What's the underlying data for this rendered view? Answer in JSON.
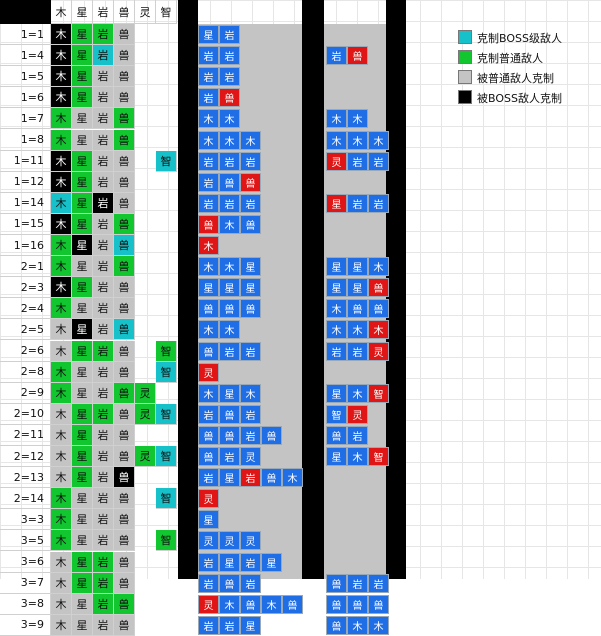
{
  "header": [
    "木",
    "星",
    "岩",
    "兽",
    "灵",
    "智"
  ],
  "colors": {
    "cyan": "#16c1c9",
    "green": "#11c62f",
    "gray": "#c4c4c4",
    "black": "#000000",
    "blue": "#1f6ee6",
    "red": "#e01616",
    "white": "#ffffff"
  },
  "legend": [
    {
      "label": "克制BOSS级敌人",
      "color": "cyan"
    },
    {
      "label": "克制普通敌人",
      "color": "green"
    },
    {
      "label": "被普通敌人克制",
      "color": "gray"
    },
    {
      "label": "被BOSS敌人克制",
      "color": "black"
    }
  ],
  "rows": [
    {
      "label": "1=1",
      "left": [
        [
          "木",
          "k"
        ],
        [
          "星",
          "g"
        ],
        [
          "岩",
          "g"
        ],
        [
          "兽",
          "y"
        ]
      ],
      "a": [
        [
          "星",
          "b"
        ],
        [
          "岩",
          "b"
        ]
      ],
      "b": []
    },
    {
      "label": "1=4",
      "left": [
        [
          "木",
          "k"
        ],
        [
          "星",
          "g"
        ],
        [
          "岩",
          "c"
        ],
        [
          "兽",
          "y"
        ]
      ],
      "a": [
        [
          "岩",
          "b"
        ],
        [
          "岩",
          "b"
        ]
      ],
      "b": [
        [
          "岩",
          "b"
        ],
        [
          "兽",
          "r"
        ]
      ]
    },
    {
      "label": "1=5",
      "left": [
        [
          "木",
          "k"
        ],
        [
          "星",
          "g"
        ],
        [
          "岩",
          "y"
        ],
        [
          "兽",
          "y"
        ]
      ],
      "a": [
        [
          "岩",
          "b"
        ],
        [
          "岩",
          "b"
        ]
      ],
      "b": []
    },
    {
      "label": "1=6",
      "left": [
        [
          "木",
          "k"
        ],
        [
          "星",
          "g"
        ],
        [
          "岩",
          "y"
        ],
        [
          "兽",
          "y"
        ]
      ],
      "a": [
        [
          "岩",
          "b"
        ],
        [
          "兽",
          "r"
        ]
      ],
      "b": []
    },
    {
      "label": "1=7",
      "left": [
        [
          "木",
          "g"
        ],
        [
          "星",
          "y"
        ],
        [
          "岩",
          "y"
        ],
        [
          "兽",
          "g"
        ]
      ],
      "a": [
        [
          "木",
          "b"
        ],
        [
          "木",
          "b"
        ]
      ],
      "b": [
        [
          "木",
          "b"
        ],
        [
          "木",
          "b"
        ]
      ]
    },
    {
      "label": "1=8",
      "left": [
        [
          "木",
          "g"
        ],
        [
          "星",
          "y"
        ],
        [
          "岩",
          "y"
        ],
        [
          "兽",
          "g"
        ]
      ],
      "a": [
        [
          "木",
          "b"
        ],
        [
          "木",
          "b"
        ],
        [
          "木",
          "b"
        ]
      ],
      "b": [
        [
          "木",
          "b"
        ],
        [
          "木",
          "b"
        ],
        [
          "木",
          "b"
        ]
      ]
    },
    {
      "label": "1=11",
      "left": [
        [
          "木",
          "k"
        ],
        [
          "星",
          "g"
        ],
        [
          "岩",
          "y"
        ],
        [
          "兽",
          "y"
        ],
        [
          "",
          ""
        ],
        [
          "智",
          "c"
        ]
      ],
      "a": [
        [
          "岩",
          "b"
        ],
        [
          "岩",
          "b"
        ],
        [
          "岩",
          "b"
        ]
      ],
      "b": [
        [
          "灵",
          "r"
        ],
        [
          "岩",
          "b"
        ],
        [
          "岩",
          "b"
        ]
      ]
    },
    {
      "label": "1=12",
      "left": [
        [
          "木",
          "k"
        ],
        [
          "星",
          "g"
        ],
        [
          "岩",
          "y"
        ],
        [
          "兽",
          "y"
        ]
      ],
      "a": [
        [
          "岩",
          "b"
        ],
        [
          "兽",
          "b"
        ],
        [
          "兽",
          "r"
        ]
      ],
      "b": []
    },
    {
      "label": "1=14",
      "left": [
        [
          "木",
          "c"
        ],
        [
          "星",
          "g"
        ],
        [
          "岩",
          "k"
        ],
        [
          "兽",
          "y"
        ]
      ],
      "a": [
        [
          "岩",
          "b"
        ],
        [
          "岩",
          "b"
        ],
        [
          "岩",
          "b"
        ]
      ],
      "b": [
        [
          "星",
          "r"
        ],
        [
          "岩",
          "b"
        ],
        [
          "岩",
          "b"
        ]
      ]
    },
    {
      "label": "1=15",
      "left": [
        [
          "木",
          "k"
        ],
        [
          "星",
          "g"
        ],
        [
          "岩",
          "y"
        ],
        [
          "兽",
          "g"
        ]
      ],
      "a": [
        [
          "兽",
          "r"
        ],
        [
          "木",
          "b"
        ],
        [
          "兽",
          "b"
        ]
      ],
      "b": []
    },
    {
      "label": "1=16",
      "left": [
        [
          "木",
          "g"
        ],
        [
          "星",
          "k"
        ],
        [
          "岩",
          "y"
        ],
        [
          "兽",
          "c"
        ]
      ],
      "a": [
        [
          "木",
          "r"
        ]
      ],
      "b": []
    },
    {
      "label": "2=1",
      "left": [
        [
          "木",
          "g"
        ],
        [
          "星",
          "y"
        ],
        [
          "岩",
          "y"
        ],
        [
          "兽",
          "g"
        ]
      ],
      "a": [
        [
          "木",
          "b"
        ],
        [
          "木",
          "b"
        ],
        [
          "星",
          "b"
        ]
      ],
      "b": [
        [
          "星",
          "b"
        ],
        [
          "星",
          "b"
        ],
        [
          "木",
          "b"
        ]
      ]
    },
    {
      "label": "2=3",
      "left": [
        [
          "木",
          "k"
        ],
        [
          "星",
          "g"
        ],
        [
          "岩",
          "y"
        ],
        [
          "兽",
          "y"
        ]
      ],
      "a": [
        [
          "星",
          "b"
        ],
        [
          "星",
          "b"
        ],
        [
          "星",
          "b"
        ]
      ],
      "b": [
        [
          "星",
          "b"
        ],
        [
          "星",
          "b"
        ],
        [
          "兽",
          "r"
        ]
      ]
    },
    {
      "label": "2=4",
      "left": [
        [
          "木",
          "g"
        ],
        [
          "星",
          "y"
        ],
        [
          "岩",
          "y"
        ],
        [
          "兽",
          "y"
        ]
      ],
      "a": [
        [
          "兽",
          "b"
        ],
        [
          "兽",
          "b"
        ],
        [
          "兽",
          "b"
        ]
      ],
      "b": [
        [
          "木",
          "b"
        ],
        [
          "兽",
          "b"
        ],
        [
          "兽",
          "b"
        ]
      ]
    },
    {
      "label": "2=5",
      "left": [
        [
          "木",
          "y"
        ],
        [
          "星",
          "k"
        ],
        [
          "岩",
          "y"
        ],
        [
          "兽",
          "c"
        ]
      ],
      "a": [
        [
          "木",
          "b"
        ],
        [
          "木",
          "b"
        ]
      ],
      "b": [
        [
          "木",
          "b"
        ],
        [
          "木",
          "b"
        ],
        [
          "木",
          "r"
        ]
      ]
    },
    {
      "label": "2=6",
      "left": [
        [
          "木",
          "y"
        ],
        [
          "星",
          "g"
        ],
        [
          "岩",
          "g"
        ],
        [
          "兽",
          "y"
        ],
        [
          "",
          ""
        ],
        [
          "智",
          "g"
        ]
      ],
      "a": [
        [
          "兽",
          "b"
        ],
        [
          "岩",
          "b"
        ],
        [
          "岩",
          "b"
        ]
      ],
      "b": [
        [
          "岩",
          "b"
        ],
        [
          "岩",
          "b"
        ],
        [
          "灵",
          "r"
        ]
      ]
    },
    {
      "label": "2=8",
      "left": [
        [
          "木",
          "g"
        ],
        [
          "星",
          "y"
        ],
        [
          "岩",
          "y"
        ],
        [
          "兽",
          "y"
        ],
        [
          "",
          ""
        ],
        [
          "智",
          "c"
        ]
      ],
      "a": [
        [
          "灵",
          "r"
        ]
      ],
      "b": []
    },
    {
      "label": "2=9",
      "left": [
        [
          "木",
          "g"
        ],
        [
          "星",
          "y"
        ],
        [
          "岩",
          "y"
        ],
        [
          "兽",
          "g"
        ],
        [
          "灵",
          "g"
        ]
      ],
      "a": [
        [
          "木",
          "b"
        ],
        [
          "星",
          "b"
        ],
        [
          "木",
          "b"
        ]
      ],
      "b": [
        [
          "星",
          "b"
        ],
        [
          "木",
          "b"
        ],
        [
          "智",
          "r"
        ]
      ]
    },
    {
      "label": "2=10",
      "left": [
        [
          "木",
          "y"
        ],
        [
          "星",
          "g"
        ],
        [
          "岩",
          "g"
        ],
        [
          "兽",
          "y"
        ],
        [
          "灵",
          "g"
        ],
        [
          "智",
          "c"
        ]
      ],
      "a": [
        [
          "岩",
          "b"
        ],
        [
          "兽",
          "b"
        ],
        [
          "岩",
          "b"
        ]
      ],
      "b": [
        [
          "智",
          "b"
        ],
        [
          "灵",
          "r"
        ]
      ]
    },
    {
      "label": "2=11",
      "left": [
        [
          "木",
          "y"
        ],
        [
          "星",
          "g"
        ],
        [
          "岩",
          "y"
        ],
        [
          "兽",
          "y"
        ]
      ],
      "a": [
        [
          "兽",
          "b"
        ],
        [
          "兽",
          "b"
        ],
        [
          "岩",
          "b"
        ],
        [
          "兽",
          "b"
        ]
      ],
      "b": [
        [
          "兽",
          "b"
        ],
        [
          "岩",
          "b"
        ]
      ]
    },
    {
      "label": "2=12",
      "left": [
        [
          "木",
          "y"
        ],
        [
          "星",
          "g"
        ],
        [
          "岩",
          "y"
        ],
        [
          "兽",
          "y"
        ],
        [
          "灵",
          "g"
        ],
        [
          "智",
          "c"
        ]
      ],
      "a": [
        [
          "兽",
          "b"
        ],
        [
          "岩",
          "b"
        ],
        [
          "灵",
          "b"
        ]
      ],
      "b": [
        [
          "星",
          "b"
        ],
        [
          "木",
          "b"
        ],
        [
          "智",
          "r"
        ]
      ]
    },
    {
      "label": "2=13",
      "left": [
        [
          "木",
          "y"
        ],
        [
          "星",
          "g"
        ],
        [
          "岩",
          "y"
        ],
        [
          "兽",
          "k"
        ]
      ],
      "a": [
        [
          "岩",
          "b"
        ],
        [
          "星",
          "b"
        ],
        [
          "岩",
          "r"
        ],
        [
          "兽",
          "b"
        ],
        [
          "木",
          "b"
        ]
      ],
      "b": []
    },
    {
      "label": "2=14",
      "left": [
        [
          "木",
          "g"
        ],
        [
          "星",
          "y"
        ],
        [
          "岩",
          "y"
        ],
        [
          "兽",
          "y"
        ],
        [
          "",
          ""
        ],
        [
          "智",
          "c"
        ]
      ],
      "a": [
        [
          "灵",
          "r"
        ]
      ],
      "b": []
    },
    {
      "label": "3=3",
      "left": [
        [
          "木",
          "g"
        ],
        [
          "星",
          "y"
        ],
        [
          "岩",
          "y"
        ],
        [
          "兽",
          "y"
        ]
      ],
      "a": [
        [
          "星",
          "b"
        ]
      ],
      "b": []
    },
    {
      "label": "3=5",
      "left": [
        [
          "木",
          "g"
        ],
        [
          "星",
          "y"
        ],
        [
          "岩",
          "y"
        ],
        [
          "兽",
          "y"
        ],
        [
          "",
          ""
        ],
        [
          "智",
          "g"
        ]
      ],
      "a": [
        [
          "灵",
          "b"
        ],
        [
          "灵",
          "b"
        ],
        [
          "灵",
          "b"
        ]
      ],
      "b": []
    },
    {
      "label": "3=6",
      "left": [
        [
          "木",
          "y"
        ],
        [
          "星",
          "g"
        ],
        [
          "岩",
          "g"
        ],
        [
          "兽",
          "y"
        ]
      ],
      "a": [
        [
          "岩",
          "b"
        ],
        [
          "星",
          "b"
        ],
        [
          "岩",
          "b"
        ],
        [
          "星",
          "b"
        ]
      ],
      "b": []
    },
    {
      "label": "3=7",
      "left": [
        [
          "木",
          "y"
        ],
        [
          "星",
          "g"
        ],
        [
          "岩",
          "g"
        ],
        [
          "兽",
          "y"
        ]
      ],
      "a": [
        [
          "岩",
          "b"
        ],
        [
          "兽",
          "b"
        ],
        [
          "岩",
          "b"
        ]
      ],
      "b": [
        [
          "兽",
          "b"
        ],
        [
          "岩",
          "b"
        ],
        [
          "岩",
          "b"
        ]
      ]
    },
    {
      "label": "3=8",
      "left": [
        [
          "木",
          "y"
        ],
        [
          "星",
          "y"
        ],
        [
          "岩",
          "g"
        ],
        [
          "兽",
          "g"
        ]
      ],
      "a": [
        [
          "灵",
          "r"
        ],
        [
          "木",
          "b"
        ],
        [
          "兽",
          "b"
        ],
        [
          "木",
          "b"
        ],
        [
          "兽",
          "b"
        ]
      ],
      "b": [
        [
          "兽",
          "b"
        ],
        [
          "兽",
          "b"
        ],
        [
          "兽",
          "b"
        ]
      ]
    },
    {
      "label": "3=9",
      "left": [
        [
          "木",
          "y"
        ],
        [
          "星",
          "y"
        ],
        [
          "岩",
          "y"
        ],
        [
          "兽",
          "y"
        ]
      ],
      "a": [
        [
          "岩",
          "b"
        ],
        [
          "岩",
          "b"
        ],
        [
          "星",
          "b"
        ]
      ],
      "b": [
        [
          "兽",
          "b"
        ],
        [
          "木",
          "b"
        ],
        [
          "木",
          "b"
        ]
      ]
    }
  ]
}
